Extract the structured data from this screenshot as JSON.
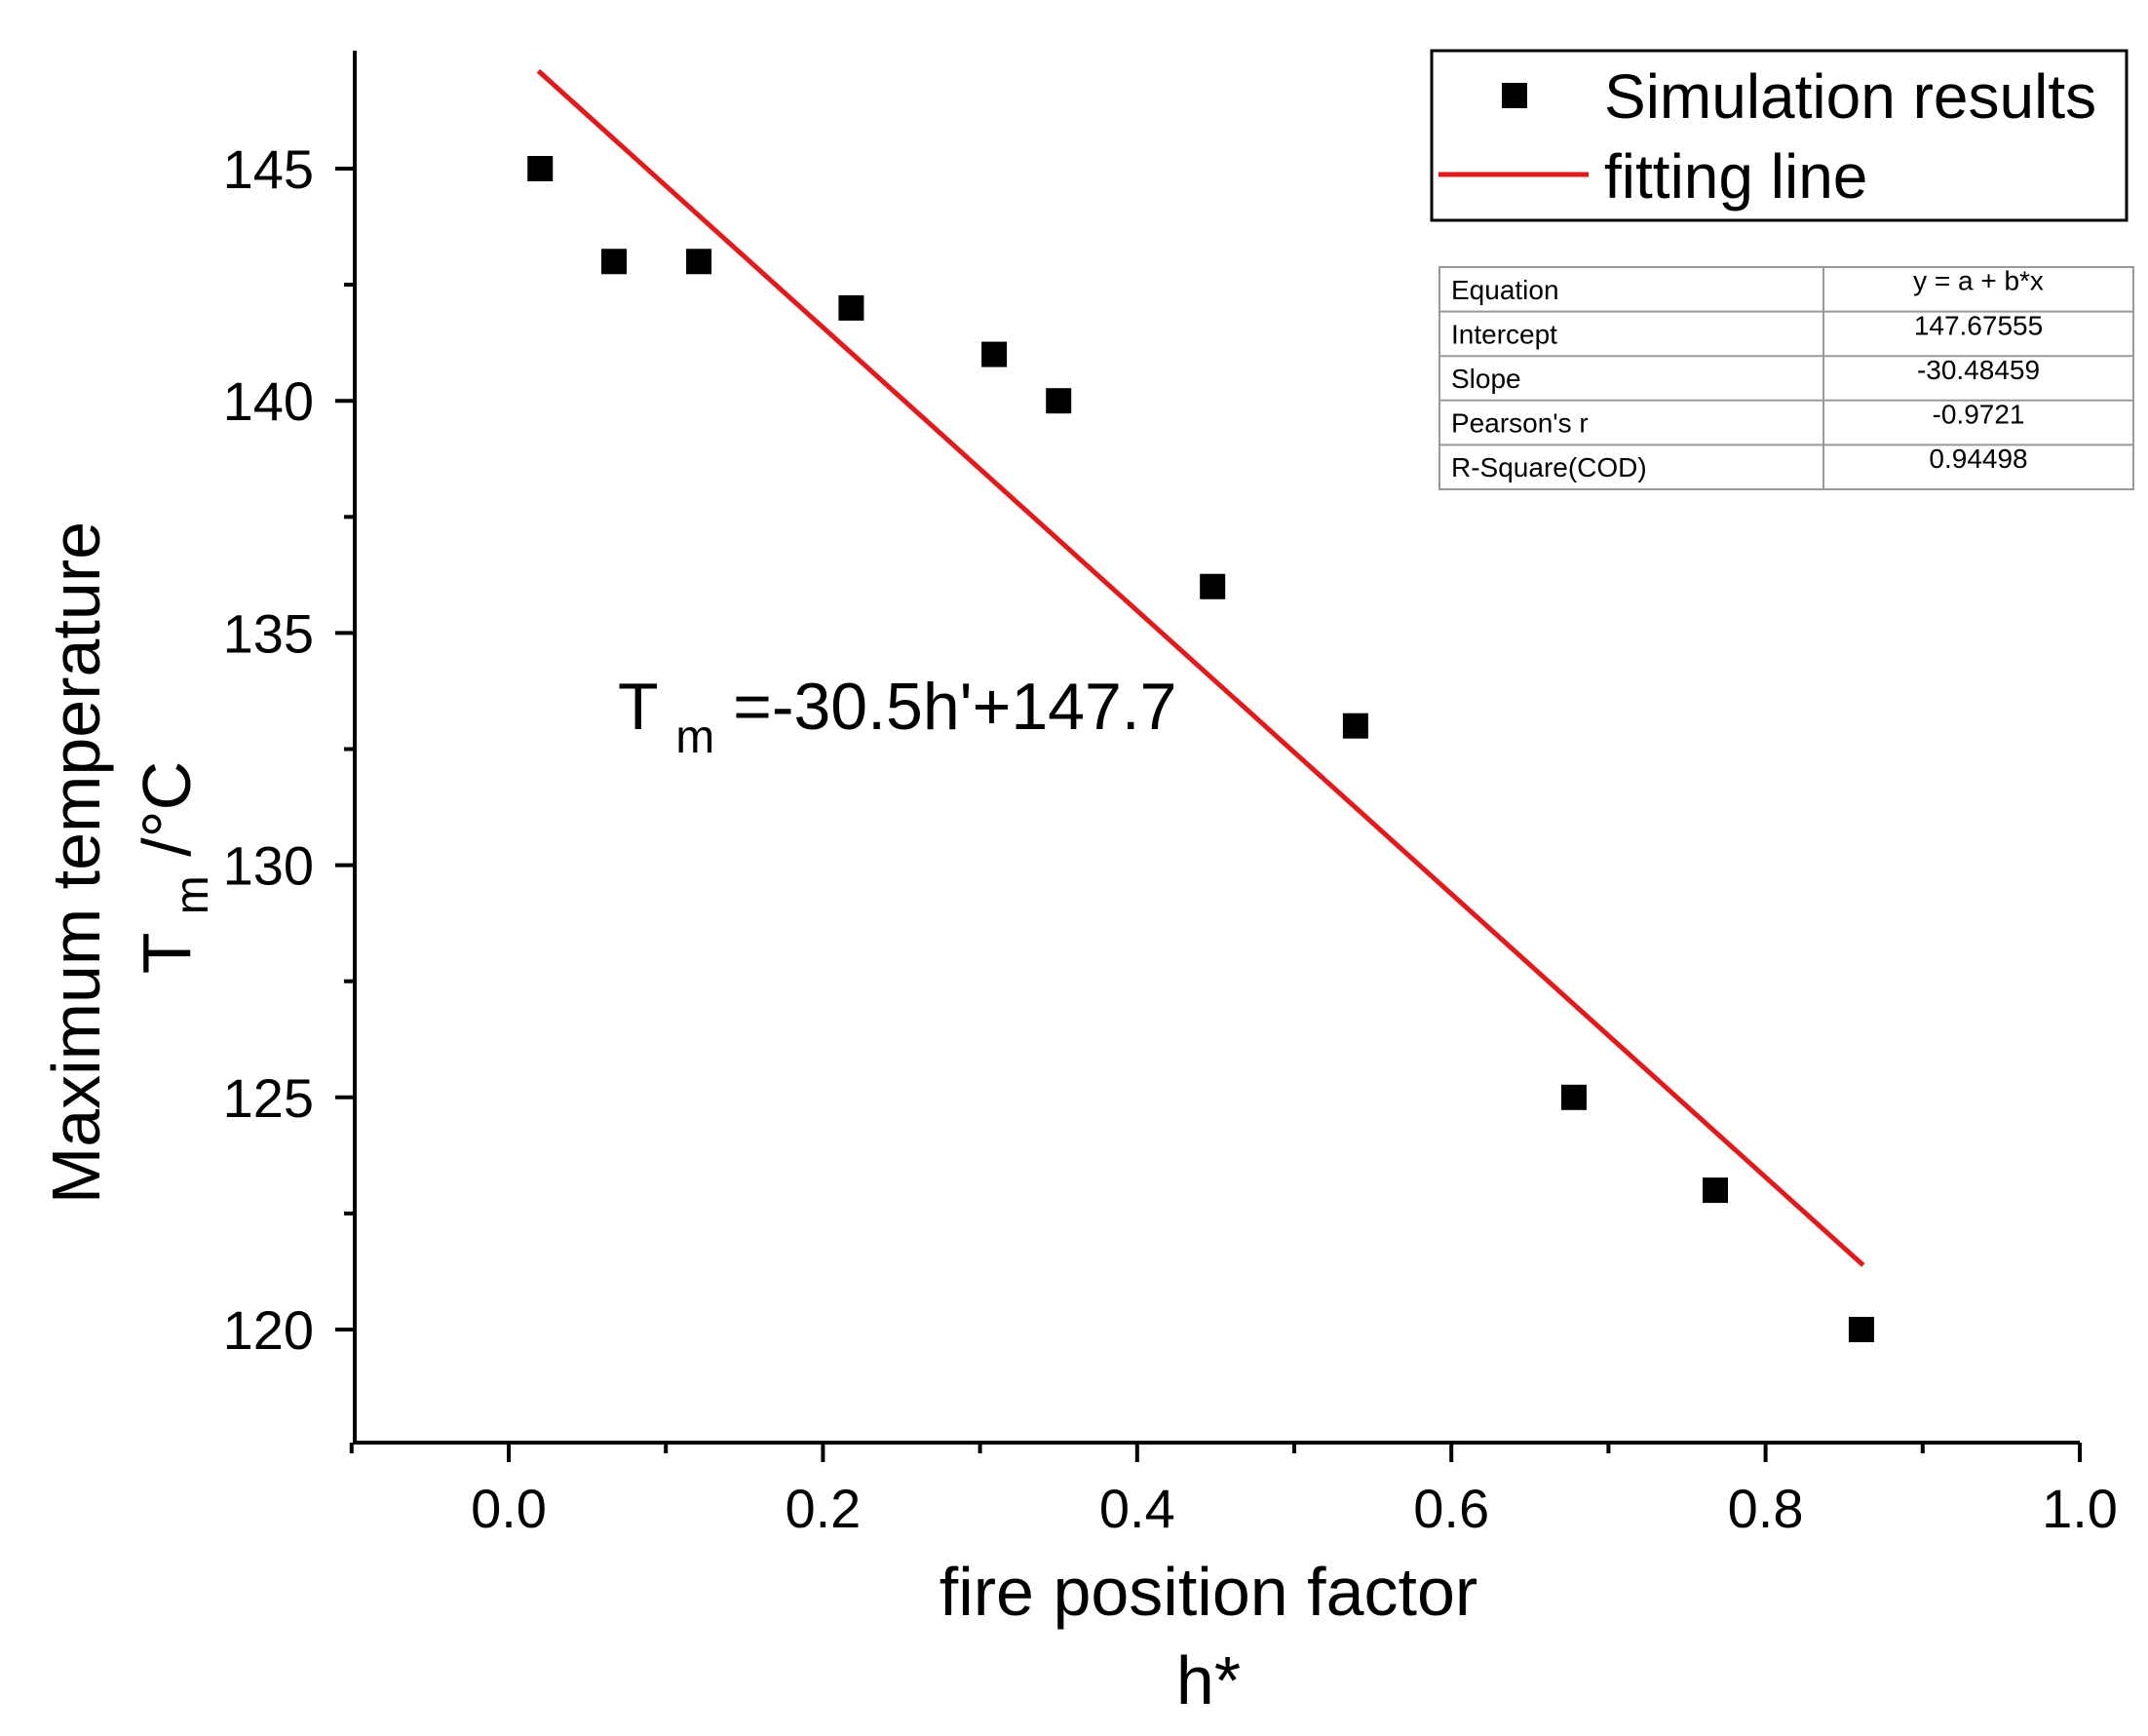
{
  "colors": {
    "background": "#ffffff",
    "axis": "#000000",
    "marker": "#000000",
    "fit_line": "#e31a1c",
    "table_border": "#999999"
  },
  "chart_data": {
    "type": "scatter",
    "title": "",
    "xlabel_line1": "fire position factor",
    "xlabel_line2": "h*",
    "ylabel_line1": "Maximum temperature",
    "ylabel_line2_main": "T",
    "ylabel_line2_sub": "m",
    "ylabel_line2_unit": " /°C",
    "xlim": [
      -0.1,
      1.0
    ],
    "ylim": [
      117.5,
      147.5
    ],
    "xticks": [
      0.0,
      0.2,
      0.4,
      0.6,
      0.8,
      1.0
    ],
    "xtick_labels": [
      "0.0",
      "0.2",
      "0.4",
      "0.6",
      "0.8",
      "1.0"
    ],
    "x_minor_ticks": [
      -0.1,
      0.1,
      0.3,
      0.5,
      0.7,
      0.9
    ],
    "yticks": [
      120,
      125,
      130,
      135,
      140,
      145
    ],
    "ytick_labels": [
      "120",
      "125",
      "130",
      "135",
      "140",
      "145"
    ],
    "y_minor_ticks": [
      122.5,
      127.5,
      132.5,
      137.5,
      142.5
    ],
    "series": [
      {
        "name": "Simulation results",
        "kind": "scatter",
        "marker": "square",
        "x": [
          0.02,
          0.067,
          0.121,
          0.218,
          0.309,
          0.35,
          0.448,
          0.539,
          0.678,
          0.768,
          0.861
        ],
        "y": [
          145,
          143,
          143,
          142,
          141,
          140,
          136,
          133,
          125,
          123,
          120
        ]
      },
      {
        "name": "fitting line",
        "kind": "line",
        "x": [
          0.02,
          0.861
        ],
        "y": [
          147.07,
          121.42
        ]
      }
    ],
    "legend": {
      "position": "top-right",
      "entries": [
        "Simulation results",
        "fitting line"
      ]
    },
    "annotation": {
      "main": "T",
      "sub": "m",
      "rest": "=-30.5h'+147.7"
    },
    "fit_table": {
      "position": "top-right",
      "rows": [
        {
          "label": "Equation",
          "value": "y = a + b*x"
        },
        {
          "label": "Intercept",
          "value": "147.67555"
        },
        {
          "label": "Slope",
          "value": "-30.48459"
        },
        {
          "label": "Pearson's r",
          "value": "-0.9721"
        },
        {
          "label": "R-Square(COD)",
          "value": "0.94498"
        }
      ]
    }
  }
}
